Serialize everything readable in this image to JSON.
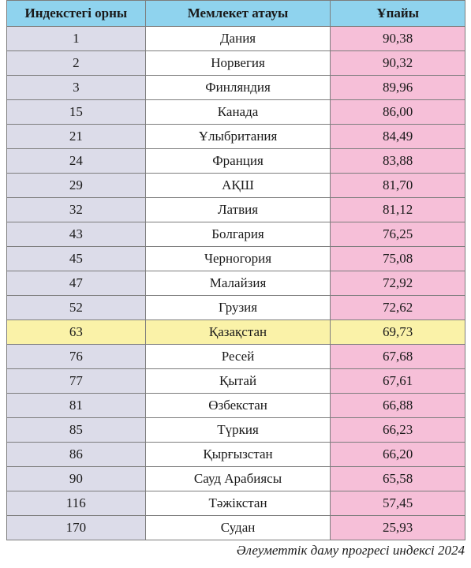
{
  "table": {
    "headers": [
      "Индекстегі орны",
      "Мемлекет атауы",
      "Ұпайы"
    ],
    "rows": [
      {
        "rank": "1",
        "country": "Дания",
        "score": "90,38"
      },
      {
        "rank": "2",
        "country": "Норвегия",
        "score": "90,32"
      },
      {
        "rank": "3",
        "country": "Финляндия",
        "score": "89,96"
      },
      {
        "rank": "15",
        "country": "Канада",
        "score": "86,00"
      },
      {
        "rank": "21",
        "country": "Ұлыбритания",
        "score": "84,49"
      },
      {
        "rank": "24",
        "country": "Франция",
        "score": "83,88"
      },
      {
        "rank": "29",
        "country": "АҚШ",
        "score": "81,70"
      },
      {
        "rank": "32",
        "country": "Латвия",
        "score": "81,12"
      },
      {
        "rank": "43",
        "country": "Болгария",
        "score": "76,25"
      },
      {
        "rank": "45",
        "country": "Черногория",
        "score": "75,08"
      },
      {
        "rank": "47",
        "country": "Малайзия",
        "score": "72,92"
      },
      {
        "rank": "52",
        "country": "Грузия",
        "score": "72,62"
      },
      {
        "rank": "63",
        "country": "Қазақстан",
        "score": "69,73",
        "highlight": true
      },
      {
        "rank": "76",
        "country": "Ресей",
        "score": "67,68"
      },
      {
        "rank": "77",
        "country": "Қытай",
        "score": "67,61"
      },
      {
        "rank": "81",
        "country": "Өзбекстан",
        "score": "66,88"
      },
      {
        "rank": "85",
        "country": "Түркия",
        "score": "66,23"
      },
      {
        "rank": "86",
        "country": "Қырғызстан",
        "score": "66,20"
      },
      {
        "rank": "90",
        "country": "Сауд Арабиясы",
        "score": "65,58"
      },
      {
        "rank": "116",
        "country": "Тәжікстан",
        "score": "57,45"
      },
      {
        "rank": "170",
        "country": "Судан",
        "score": "25,93"
      }
    ]
  },
  "caption": "Әлеуметтік даму прогресі индексі 2024",
  "colors": {
    "header_bg": "#8fd3ee",
    "rank_bg": "#dcdce9",
    "score_bg": "#f6bfd8",
    "highlight_bg": "#faf2a8"
  }
}
